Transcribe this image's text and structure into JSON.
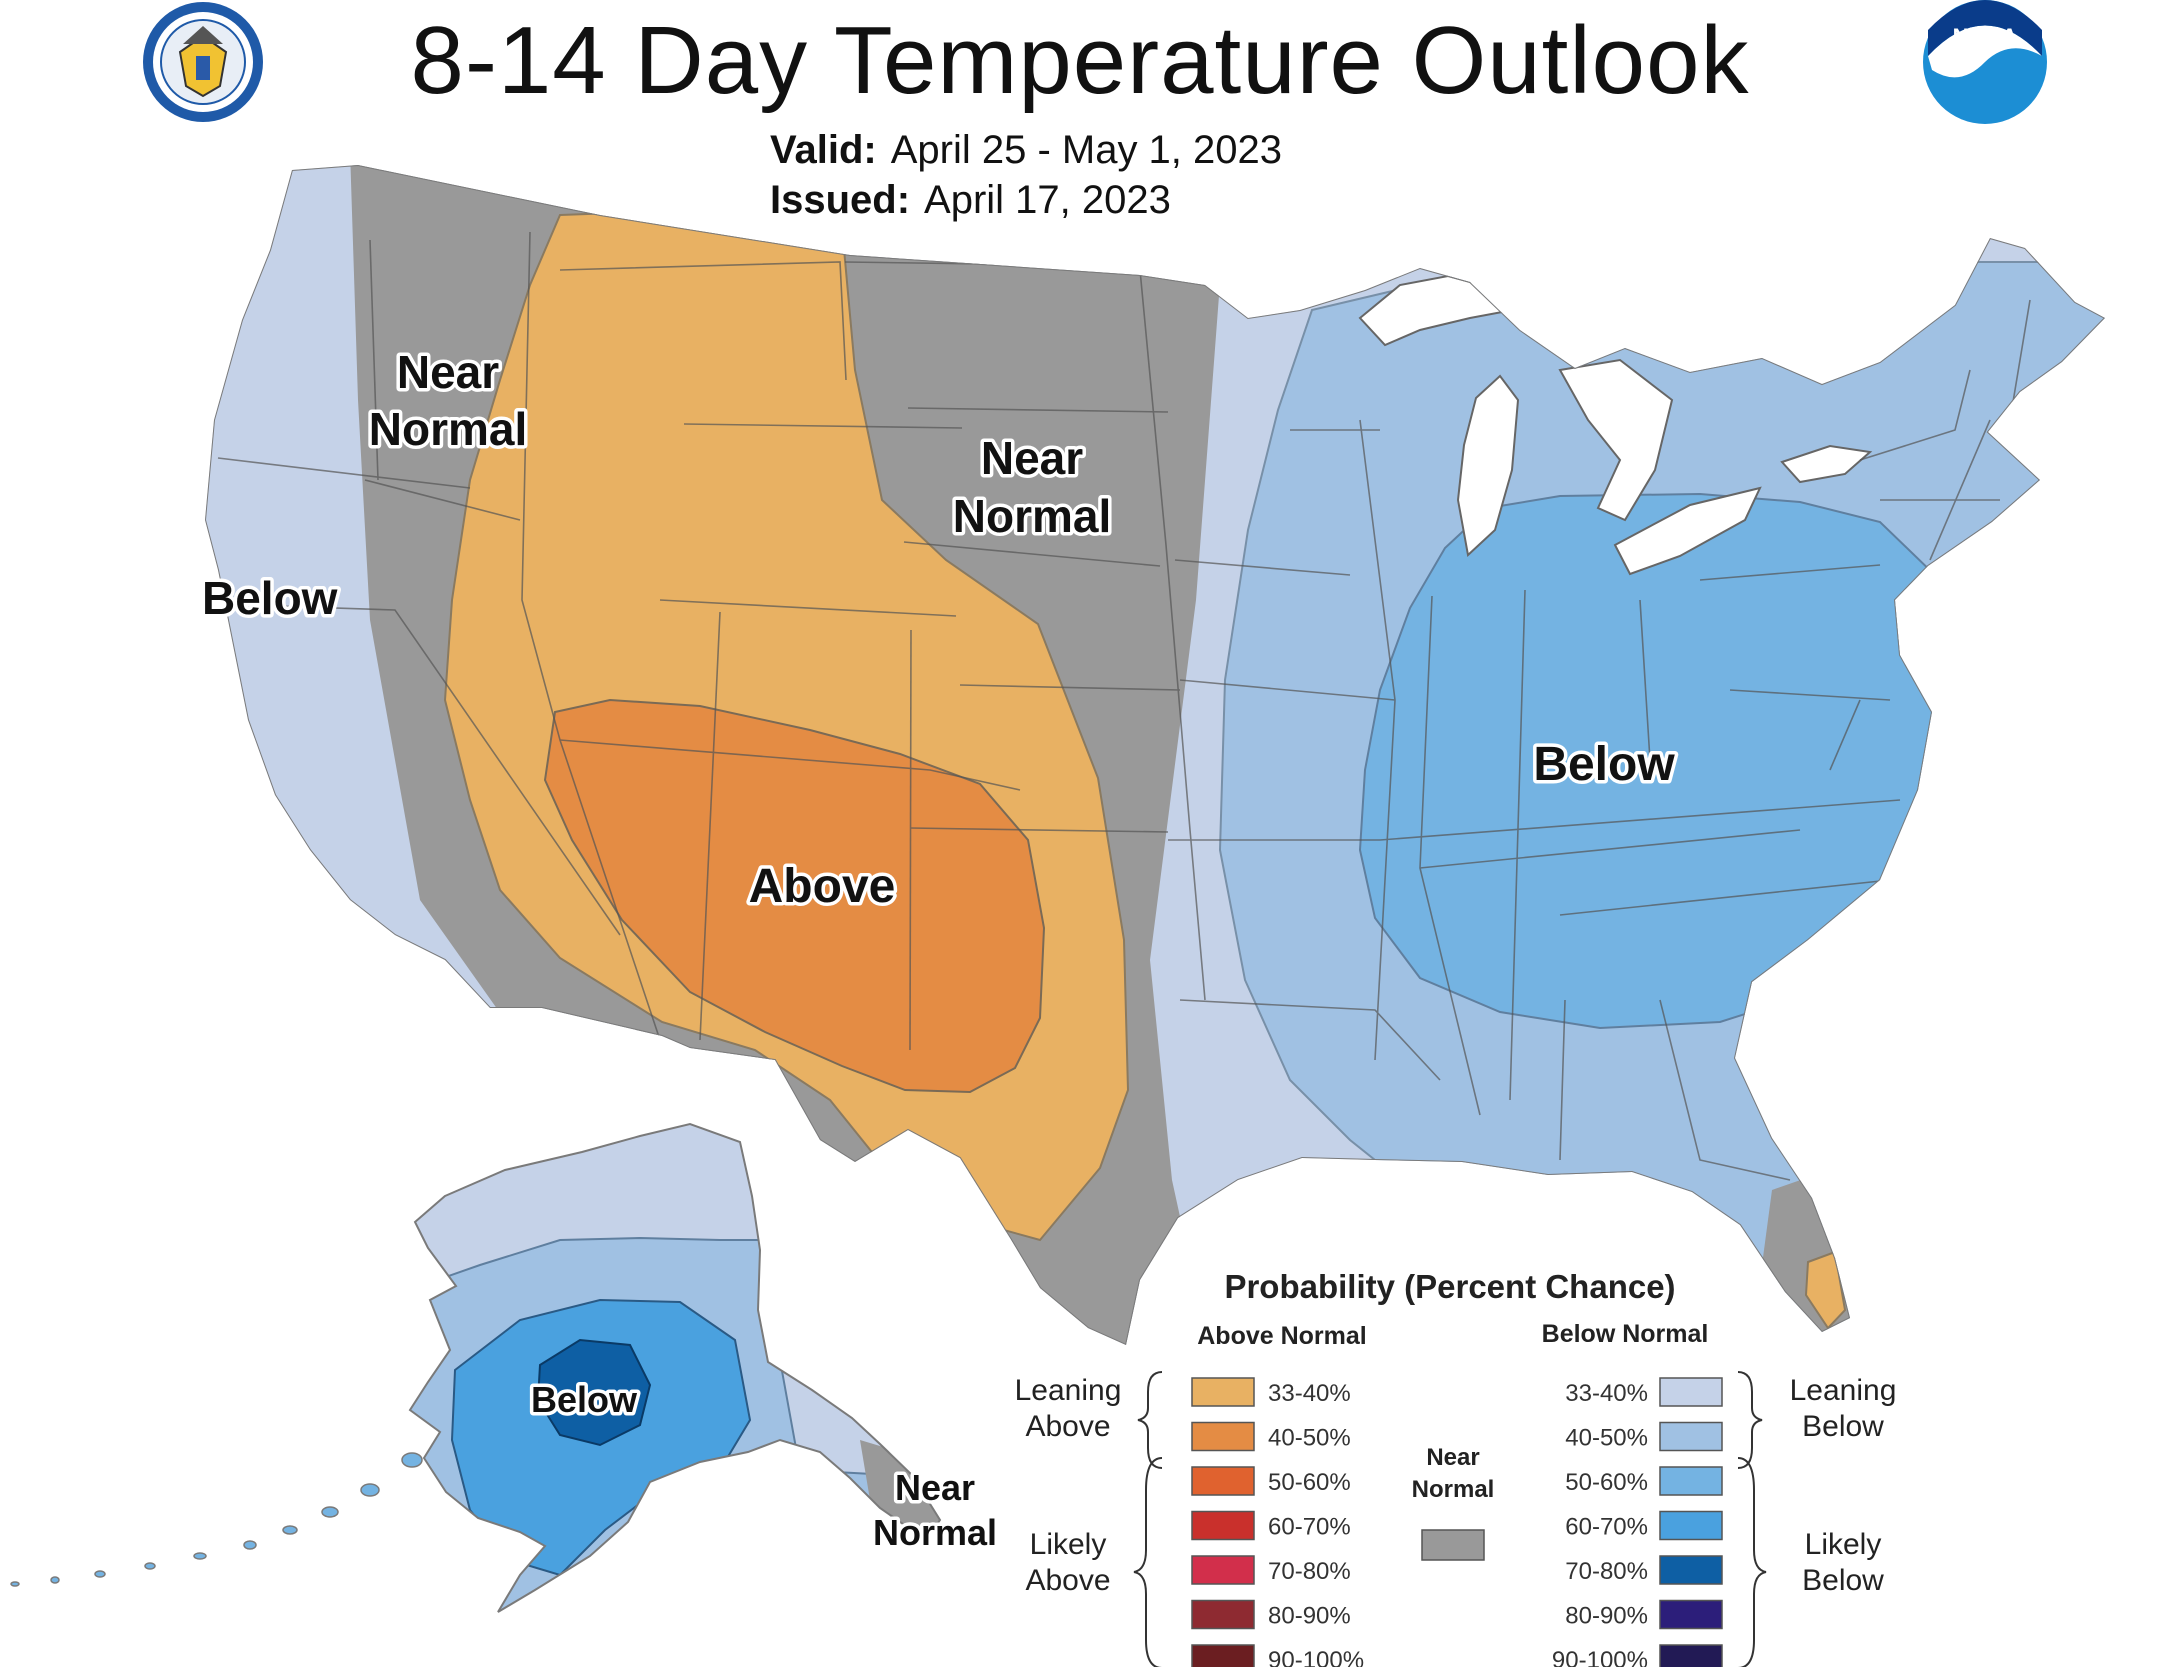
{
  "header": {
    "title": "8-14 Day Temperature Outlook",
    "valid_label": "Valid:",
    "valid_value": "April 25 - May 1, 2023",
    "issued_label": "Issued:",
    "issued_value": "April 17, 2023"
  },
  "logos": {
    "left": "department-of-commerce-seal",
    "right": "noaa-logo",
    "right_text": "NOAA"
  },
  "map": {
    "labels": {
      "west_below": "Below",
      "west_near_normal_1": "Near",
      "west_near_normal_2": "Normal",
      "plains_near_normal_1": "Near",
      "plains_near_normal_2": "Normal",
      "southwest_above": "Above",
      "east_below": "Below",
      "alaska_below": "Below",
      "alaska_near_normal_1": "Near",
      "alaska_near_normal_2": "Normal"
    },
    "colors": {
      "near_normal": "#999999",
      "above_33_40": "#E8B163",
      "above_40_50": "#E48C44",
      "below_33_40": "#C5D2E8",
      "below_40_50": "#A0C1E3",
      "below_50_60": "#74B3E2",
      "below_60_70": "#4AA1DF",
      "below_70_80": "#0E5FA4"
    }
  },
  "legend": {
    "title": "Probability (Percent Chance)",
    "above_header": "Above Normal",
    "below_header": "Below Normal",
    "near_header_1": "Near",
    "near_header_2": "Normal",
    "near_color": "#999999",
    "leaning_above_1": "Leaning",
    "leaning_above_2": "Above",
    "likely_above_1": "Likely",
    "likely_above_2": "Above",
    "leaning_below_1": "Leaning",
    "leaning_below_2": "Below",
    "likely_below_1": "Likely",
    "likely_below_2": "Below",
    "above": [
      {
        "label": "33-40%",
        "color": "#E8B163"
      },
      {
        "label": "40-50%",
        "color": "#E48C44"
      },
      {
        "label": "50-60%",
        "color": "#E0622F"
      },
      {
        "label": "60-70%",
        "color": "#C9302C"
      },
      {
        "label": "70-80%",
        "color": "#D22F4B"
      },
      {
        "label": "80-90%",
        "color": "#8E2A31"
      },
      {
        "label": "90-100%",
        "color": "#6B1E21"
      }
    ],
    "below": [
      {
        "label": "33-40%",
        "color": "#C5D2E8"
      },
      {
        "label": "40-50%",
        "color": "#A0C1E3"
      },
      {
        "label": "50-60%",
        "color": "#74B3E2"
      },
      {
        "label": "60-70%",
        "color": "#4AA1DF"
      },
      {
        "label": "70-80%",
        "color": "#0E5FA4"
      },
      {
        "label": "80-90%",
        "color": "#2C1E7A"
      },
      {
        "label": "90-100%",
        "color": "#221A55"
      }
    ]
  }
}
